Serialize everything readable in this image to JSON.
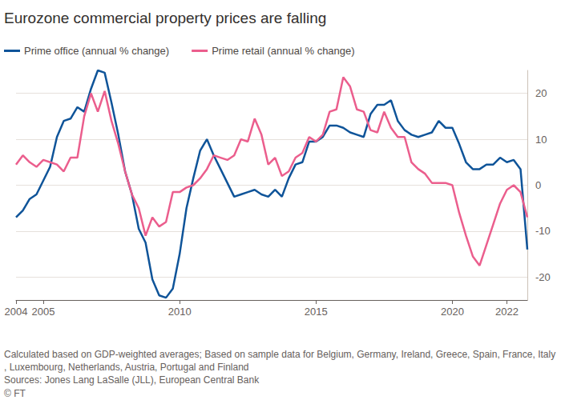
{
  "chart_data": {
    "type": "line",
    "title": "Eurozone commercial property prices are falling",
    "x": [
      2004,
      2004.25,
      2004.5,
      2004.75,
      2005,
      2005.25,
      2005.5,
      2005.75,
      2006,
      2006.25,
      2006.5,
      2006.75,
      2007,
      2007.25,
      2007.5,
      2007.75,
      2008,
      2008.25,
      2008.5,
      2008.75,
      2009,
      2009.25,
      2009.5,
      2009.75,
      2010,
      2010.25,
      2010.5,
      2010.75,
      2011,
      2011.25,
      2011.5,
      2011.75,
      2012,
      2012.25,
      2012.5,
      2012.75,
      2013,
      2013.25,
      2013.5,
      2013.75,
      2014,
      2014.25,
      2014.5,
      2014.75,
      2015,
      2015.25,
      2015.5,
      2015.75,
      2016,
      2016.25,
      2016.5,
      2016.75,
      2017,
      2017.25,
      2017.5,
      2017.75,
      2018,
      2018.25,
      2018.5,
      2018.75,
      2019,
      2019.25,
      2019.5,
      2019.75,
      2020,
      2020.25,
      2020.5,
      2020.75,
      2021,
      2021.25,
      2021.5,
      2021.75,
      2022,
      2022.25,
      2022.5,
      2022.75
    ],
    "series": [
      {
        "name": "Prime office (annual % change)",
        "color": "#0f5499",
        "values": [
          -7,
          -5.5,
          -3,
          -2,
          1,
          4,
          10.5,
          14,
          14.5,
          17,
          16,
          21,
          25,
          24.5,
          18,
          11,
          3,
          -2,
          -9.5,
          -12.5,
          -20.5,
          -24,
          -24.5,
          -22.5,
          -15,
          -5,
          1.5,
          7.5,
          10,
          6.5,
          3.5,
          0.5,
          -2.5,
          -2,
          -1.5,
          -1,
          -2,
          -2.5,
          -1,
          -2.5,
          1.5,
          4.5,
          5,
          9.5,
          9.5,
          10.5,
          13,
          13,
          12.5,
          11.5,
          11,
          10.5,
          15.5,
          17.5,
          17.5,
          18.5,
          14,
          12,
          11,
          10.5,
          11,
          11.5,
          14,
          12.5,
          12.5,
          9,
          5,
          3.5,
          3.5,
          4.5,
          4.5,
          6,
          5,
          5.5,
          3.5,
          -14
        ]
      },
      {
        "name": "Prime retail (annual % change)",
        "color": "#eb5e8d",
        "values": [
          4.5,
          6.5,
          5,
          4,
          5.5,
          5,
          4.5,
          3,
          6,
          6,
          15,
          20,
          16,
          20.5,
          14,
          9,
          3,
          -2,
          -5,
          -11,
          -7,
          -9,
          -8,
          -1.5,
          -1.5,
          -0.5,
          0,
          1.5,
          3.5,
          6.5,
          6,
          5.5,
          6.5,
          10,
          9.5,
          14.5,
          11,
          4.5,
          6,
          2,
          3,
          6,
          7,
          10.5,
          9.5,
          11,
          16,
          16.5,
          23.5,
          21.5,
          16.5,
          16,
          12,
          11.5,
          16,
          12.5,
          10.5,
          10.5,
          5,
          3.5,
          2.5,
          0.5,
          0.5,
          0.5,
          0,
          -6,
          -11,
          -15.5,
          -17.5,
          -13,
          -8.5,
          -4,
          -1,
          0,
          -1.5,
          -7
        ]
      }
    ],
    "xlim": [
      2004,
      2022.75
    ],
    "xticks": [
      2004,
      2005,
      2010,
      2015,
      2020,
      2022
    ],
    "ylim": [
      -25,
      25
    ],
    "yticks": [
      -20,
      -10,
      0,
      10,
      20
    ],
    "grid": true,
    "legend": "top-left",
    "marker": "none",
    "line_style": "solid",
    "notes": "Calculated based on GDP-weighted averages; Based on sample data for Belgium, Germany, Ireland, Greece, Spain, France, Italy, Luxembourg, Netherlands, Austria, Portugal and Finland",
    "source": "Sources: Jones Lang LaSalle (JLL), European Central Bank",
    "credit": "© FT"
  }
}
